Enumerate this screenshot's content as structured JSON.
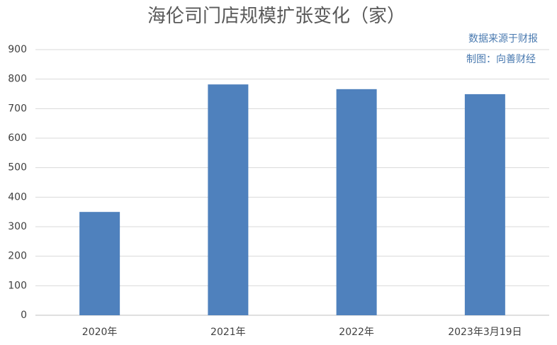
{
  "chart_data": {
    "type": "bar",
    "title": "海伦司门店规模扩张变化（家）",
    "annotations": [
      "数据来源于财报",
      "制图：向善财经"
    ],
    "categories": [
      "2020年",
      "2021年",
      "2022年",
      "2023年3月19日"
    ],
    "values": [
      350,
      782,
      766,
      749
    ],
    "color": "#4f81bd",
    "ylim": [
      0,
      900
    ],
    "yticks": [
      0,
      100,
      200,
      300,
      400,
      500,
      600,
      700,
      800,
      900
    ],
    "grid": true
  }
}
